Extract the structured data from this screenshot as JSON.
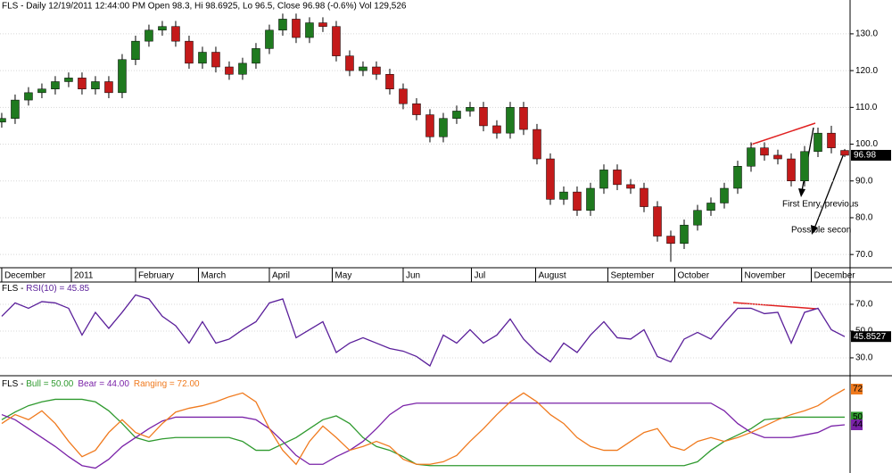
{
  "chart_data": [
    {
      "type": "candlestick",
      "title": "FLS - Daily 12/19/2011 12:44:00 PM Open 98.3, Hi 98.6925, Lo 96.5, Close 96.98 (-0.6%) Vol 129,526",
      "open": [
        106,
        107,
        112,
        114,
        115,
        117,
        118,
        115,
        117,
        114,
        123,
        128,
        131,
        132,
        128,
        122,
        125,
        121,
        119,
        122,
        126,
        131,
        134,
        129,
        133,
        132,
        124,
        120,
        121,
        119,
        115,
        111,
        108,
        102,
        107,
        109,
        110,
        105,
        103,
        110,
        104,
        96,
        85,
        87,
        82,
        88,
        93,
        89,
        88,
        83,
        75,
        73,
        78,
        82,
        84,
        88,
        94,
        99,
        97,
        96,
        90,
        98,
        103,
        98.3
      ],
      "high": [
        108.5,
        113.5,
        115.5,
        116.5,
        118.5,
        119.5,
        119.5,
        118.5,
        118.5,
        124.5,
        129.5,
        132.5,
        133.5,
        133.5,
        129.5,
        126.5,
        126.5,
        122.5,
        123.5,
        127.5,
        132.5,
        135.5,
        135.5,
        134.5,
        134.5,
        133.5,
        125.5,
        122.5,
        122.5,
        120.5,
        116.5,
        112.5,
        109.5,
        108.5,
        110.5,
        111.5,
        111.5,
        106.5,
        111.5,
        111.5,
        105.5,
        97.5,
        88.5,
        88.5,
        89.5,
        94.5,
        94.5,
        90.5,
        89.5,
        84.5,
        76.5,
        79.5,
        83.5,
        85.5,
        89.5,
        95.5,
        100.5,
        100.5,
        98.5,
        97.5,
        99.5,
        104.5,
        105,
        98.6925
      ],
      "low": [
        104.5,
        105.5,
        110.5,
        112.5,
        113.5,
        115.5,
        113.5,
        113.5,
        112.5,
        112.5,
        121.5,
        126.5,
        129.5,
        126.5,
        120.5,
        120.5,
        119.5,
        117.5,
        117.5,
        120.5,
        124.5,
        129.5,
        127.5,
        127.5,
        130.5,
        122.5,
        118.5,
        118.5,
        117.5,
        113.5,
        109.5,
        106.5,
        100.5,
        100.5,
        105.5,
        107.5,
        103.5,
        101.5,
        101.5,
        102.5,
        94.5,
        83.5,
        83.5,
        80.5,
        80.5,
        86.5,
        87.5,
        86.5,
        81.5,
        73.5,
        68,
        71.5,
        76.5,
        80.5,
        82.5,
        86.5,
        92.5,
        95.5,
        94.5,
        88.5,
        88.5,
        96.5,
        97.5,
        96.5
      ],
      "close": [
        107,
        112,
        114,
        115,
        117,
        118,
        115,
        117,
        114,
        123,
        128,
        131,
        132,
        128,
        122,
        125,
        121,
        119,
        122,
        126,
        131,
        134,
        129,
        133,
        132,
        124,
        120,
        121,
        119,
        115,
        111,
        108,
        102,
        107,
        109,
        110,
        105,
        103,
        110,
        104,
        96,
        85,
        87,
        82,
        88,
        93,
        89,
        88,
        83,
        75,
        73,
        78,
        82,
        84,
        88,
        94,
        99,
        97,
        96,
        90,
        98,
        103,
        99,
        96.98
      ],
      "up_color": "#1f7a1f",
      "down_color": "#c41a1a",
      "xlim": [
        -0.13,
        63.4
      ],
      "xticks": [
        {
          "value": 0,
          "label": "December"
        },
        {
          "value": 5.2,
          "label": "2011"
        },
        {
          "value": 10,
          "label": "February"
        },
        {
          "value": 14.7,
          "label": "March"
        },
        {
          "value": 20,
          "label": "April"
        },
        {
          "value": 24.7,
          "label": "May"
        },
        {
          "value": 30,
          "label": "Jun"
        },
        {
          "value": 35.1,
          "label": "Jul"
        },
        {
          "value": 39.9,
          "label": "August"
        },
        {
          "value": 45.3,
          "label": "September"
        },
        {
          "value": 50.3,
          "label": "October"
        },
        {
          "value": 55.3,
          "label": "November"
        },
        {
          "value": 60.5,
          "label": "December"
        }
      ],
      "ylim": [
        66.4,
        139.2
      ],
      "yticks": [
        {
          "value": 70,
          "label": "70.0"
        },
        {
          "value": 80,
          "label": "80.0"
        },
        {
          "value": 90,
          "label": "90.0"
        },
        {
          "value": 100,
          "label": "100.0"
        },
        {
          "value": 110,
          "label": "110.0"
        },
        {
          "value": 120,
          "label": "120.0"
        },
        {
          "value": 130,
          "label": "130.0"
        }
      ],
      "grid": true,
      "annotations": [
        "First Enry, previous",
        "Possible secon"
      ]
    },
    {
      "type": "line",
      "title": "FLS - ",
      "name": "RSI(10) = 45.85",
      "color": "#5a1f9a",
      "values": [
        61,
        71,
        67,
        72,
        71,
        67,
        47,
        64,
        52,
        64,
        77,
        74,
        61,
        54,
        41,
        57,
        41,
        44,
        51,
        57,
        71,
        74,
        45,
        51,
        57,
        34,
        41,
        45,
        41,
        37,
        35,
        31,
        24,
        47,
        41,
        51,
        41,
        47,
        59,
        44,
        34,
        27,
        41,
        34,
        47,
        57,
        45,
        44,
        51,
        31,
        27,
        44,
        49,
        44,
        56,
        67,
        67,
        63,
        64,
        41,
        64,
        67,
        51,
        45.8527
      ],
      "xlim": [
        -0.13,
        63.4
      ],
      "ylim": [
        17.3,
        85.3
      ],
      "yticks": [
        {
          "value": 30,
          "label": "30.0"
        },
        {
          "value": 50,
          "label": "50.0"
        },
        {
          "value": 70,
          "label": "70.0"
        }
      ],
      "grid": true
    },
    {
      "type": "multiline",
      "title": "FLS - ",
      "series": [
        {
          "name": "Bull = 50.00",
          "color": "#2f9a2f",
          "values": [
            48,
            54,
            59,
            62,
            64,
            64,
            64,
            62,
            55,
            45,
            34,
            31,
            33,
            34,
            34,
            34,
            34,
            34,
            31,
            24,
            24,
            29,
            34,
            41,
            48,
            51,
            45,
            34,
            27,
            24,
            19,
            13,
            12,
            12,
            12,
            12,
            12,
            12,
            12,
            12,
            12,
            12,
            12,
            12,
            12,
            12,
            12,
            12,
            12,
            12,
            12,
            12,
            15,
            24,
            31,
            36,
            41,
            48,
            49,
            50,
            50,
            50,
            50,
            50
          ]
        },
        {
          "name": "Bear = 44.00",
          "color": "#7a22a8",
          "values": [
            52,
            48,
            41,
            34,
            27,
            19,
            12,
            10,
            17,
            27,
            34,
            41,
            47,
            50,
            50,
            50,
            50,
            50,
            50,
            48,
            41,
            31,
            20,
            13,
            13,
            19,
            24,
            31,
            41,
            52,
            59,
            61,
            61,
            61,
            61,
            61,
            61,
            61,
            61,
            61,
            61,
            61,
            61,
            61,
            61,
            61,
            61,
            61,
            61,
            61,
            61,
            61,
            61,
            61,
            55,
            45,
            38,
            34,
            34,
            34,
            36,
            38,
            43,
            44
          ]
        },
        {
          "name": "Ranging = 72.00",
          "color": "#f07a1e",
          "values": [
            45,
            52,
            48,
            55,
            45,
            31,
            19,
            24,
            38,
            48,
            38,
            34,
            45,
            54,
            57,
            59,
            62,
            66,
            69,
            62,
            41,
            24,
            13,
            31,
            43,
            34,
            24,
            27,
            31,
            27,
            17,
            13,
            13,
            15,
            20,
            31,
            41,
            52,
            62,
            69,
            62,
            52,
            45,
            34,
            27,
            24,
            24,
            31,
            38,
            41,
            27,
            24,
            31,
            34,
            31,
            34,
            38,
            43,
            48,
            52,
            55,
            59,
            66,
            72
          ]
        }
      ],
      "xlim": [
        -0.13,
        63.4
      ],
      "ylim": [
        6.2,
        80.4
      ]
    }
  ]
}
